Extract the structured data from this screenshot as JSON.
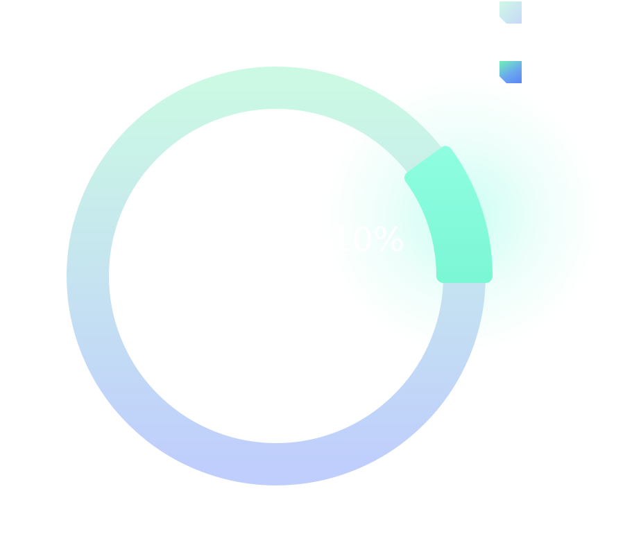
{
  "chart_data": {
    "type": "pie",
    "variant": "progress-donut",
    "value_percent": 10,
    "center_label": "10%",
    "categories": [
      "",
      ""
    ],
    "values": [
      100,
      10
    ],
    "legend_placement": "top-right",
    "colors": {
      "track_start": "#cbf9e4",
      "track_end": "#bfcefc",
      "arc_start": "#8efde0",
      "arc_end": "#7cf7d6",
      "glow": "#9efce6"
    }
  }
}
